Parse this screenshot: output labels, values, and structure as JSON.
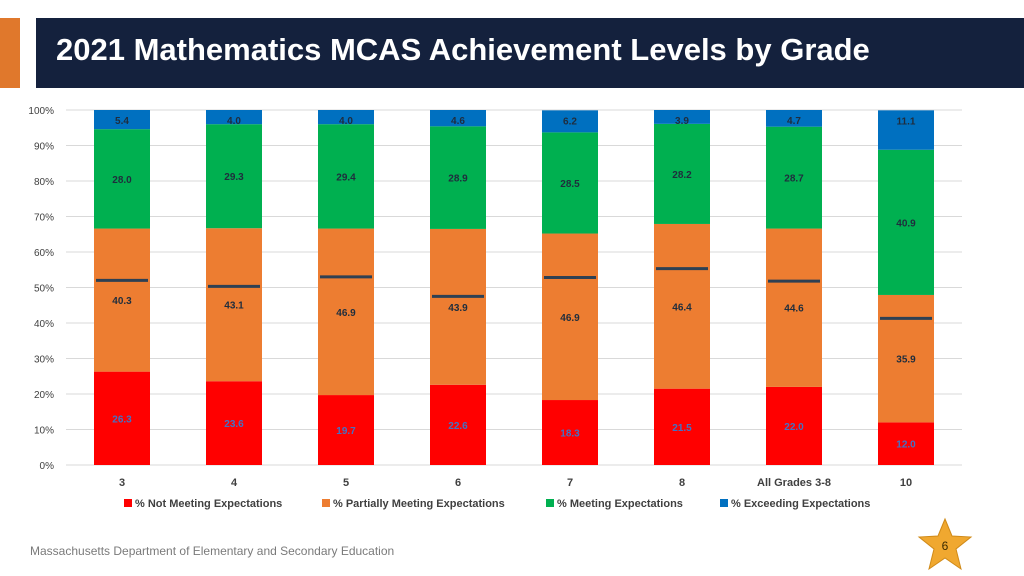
{
  "slide": {
    "title": "2021 Mathematics MCAS Achievement Levels by Grade",
    "footer": "Massachusetts Department of Elementary and Secondary Education",
    "page_number": "6",
    "accent_color": "#e0782c",
    "title_bg_color": "#14213d",
    "star_color": "#f0a830",
    "star_icon": "star-icon"
  },
  "chart_data": {
    "type": "bar",
    "stacked": true,
    "title": "",
    "xlabel": "",
    "ylabel": "",
    "ylim": [
      0,
      100
    ],
    "yticks": [
      "0%",
      "10%",
      "20%",
      "30%",
      "40%",
      "50%",
      "60%",
      "70%",
      "80%",
      "90%",
      "100%"
    ],
    "categories": [
      "3",
      "4",
      "5",
      "6",
      "7",
      "8",
      "All Grades 3-8",
      "10"
    ],
    "series": [
      {
        "name": "% Not Meeting Expectations",
        "color": "#ff0000",
        "label_color": "#4472c4",
        "label_color_last": "#4472c4",
        "values": [
          26.3,
          23.6,
          19.7,
          22.6,
          18.3,
          21.5,
          22.0,
          12.0
        ],
        "labels": [
          "26.3",
          "23.6",
          "19.7",
          "22.6",
          "18.3",
          "21.5",
          "22.0",
          "12.0"
        ]
      },
      {
        "name": "% Partially Meeting Expectations",
        "color": "#ed7d31",
        "label_color": "#1f2d3d",
        "values": [
          40.3,
          43.1,
          46.9,
          43.9,
          46.9,
          46.4,
          44.6,
          35.9
        ],
        "labels": [
          "40.3",
          "43.1",
          "46.9",
          "43.9",
          "46.9",
          "46.4",
          "44.6",
          "35.9"
        ]
      },
      {
        "name": "% Meeting Expectations",
        "color": "#00b050",
        "label_color": "#1f2d3d",
        "values": [
          28.0,
          29.3,
          29.4,
          28.9,
          28.5,
          28.2,
          28.7,
          40.9
        ],
        "labels": [
          "28.0",
          "29.3",
          "29.4",
          "28.9",
          "28.5",
          "28.2",
          "28.7",
          "40.9"
        ]
      },
      {
        "name": "% Exceeding Expectations",
        "color": "#0070c0",
        "label_color": "#1f2d3d",
        "values": [
          5.4,
          4.0,
          4.0,
          4.6,
          6.2,
          3.9,
          4.7,
          11.1
        ],
        "labels": [
          "5.4",
          "4.0",
          "4.0",
          "4.6",
          "6.2",
          "3.9",
          "4.7",
          "11.1"
        ]
      }
    ],
    "reference_lines": {
      "description": "dark horizontal marker on each bar",
      "color": "#2e4053",
      "values": [
        52,
        50.3,
        53,
        47.5,
        52.8,
        55.3,
        51.8,
        41.3
      ]
    },
    "legend": "bottom",
    "grid": true
  }
}
